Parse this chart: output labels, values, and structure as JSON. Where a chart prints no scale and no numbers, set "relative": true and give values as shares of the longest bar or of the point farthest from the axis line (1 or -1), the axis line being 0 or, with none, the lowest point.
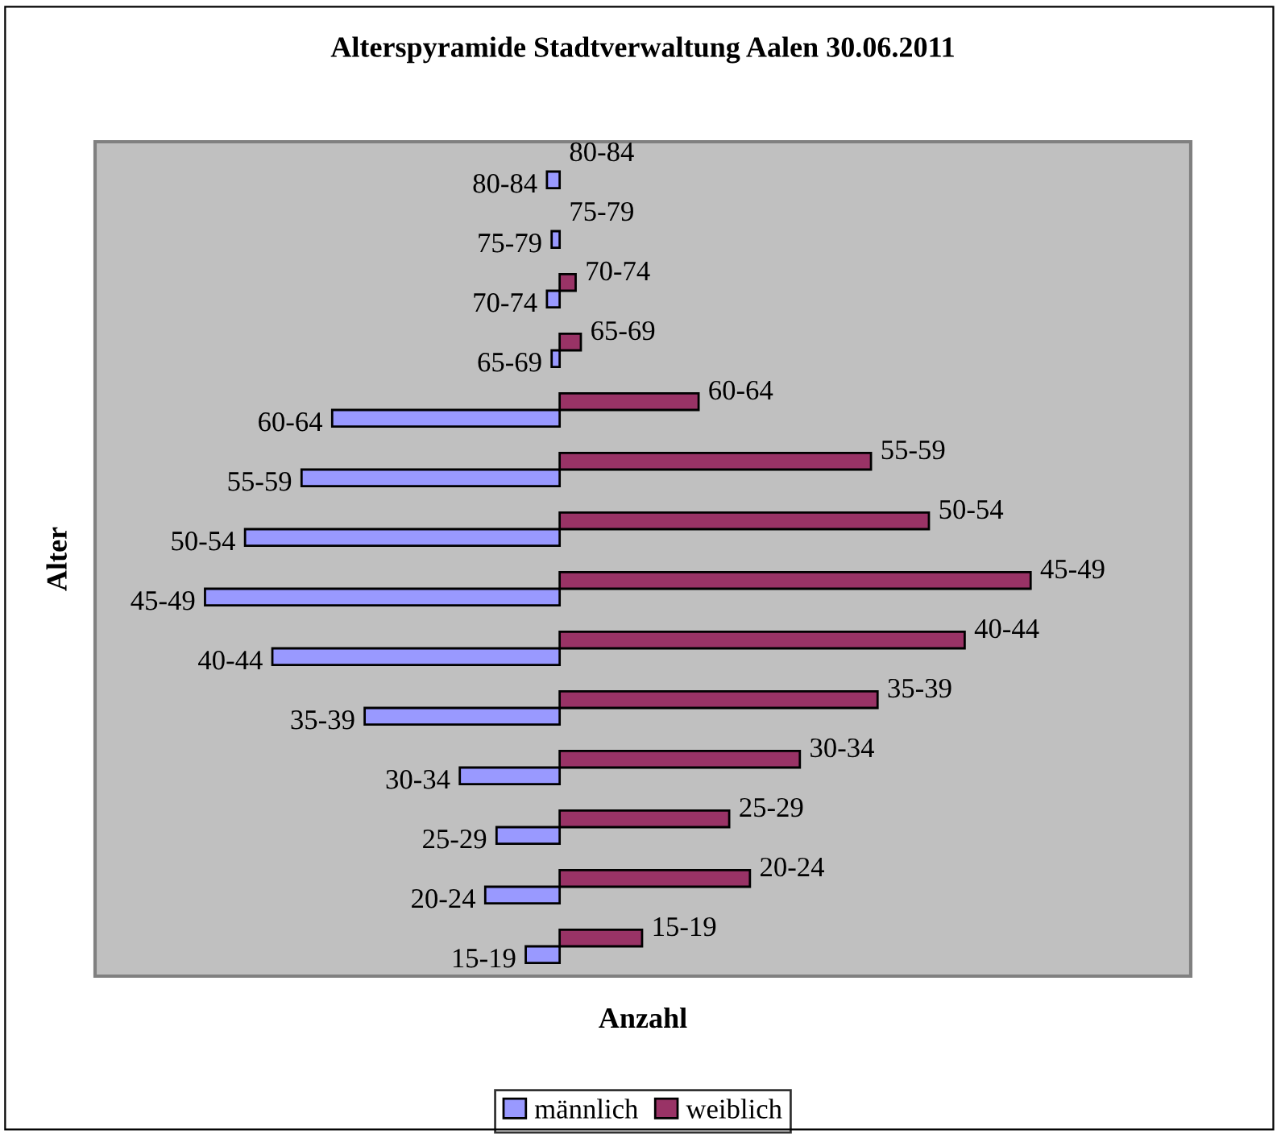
{
  "chart_data": {
    "type": "bar",
    "orientation": "horizontal",
    "relative": true,
    "title": "Alterspyramide Stadtverwaltung Aalen 30.06.2011",
    "xlabel": "Anzahl",
    "ylabel": "Alter",
    "categories": [
      "80-84",
      "75-79",
      "70-74",
      "65-69",
      "60-64",
      "55-59",
      "50-54",
      "45-49",
      "40-44",
      "35-39",
      "30-34",
      "25-29",
      "20-24",
      "15-19"
    ],
    "series": [
      {
        "name": "männlich",
        "color": "#9999ff",
        "values": [
          -0.027,
          -0.017,
          -0.027,
          -0.017,
          -0.483,
          -0.548,
          -0.668,
          -0.753,
          -0.61,
          -0.414,
          -0.212,
          -0.134,
          -0.158,
          -0.072
        ]
      },
      {
        "name": "weiblich",
        "color": "#993366",
        "values": [
          null,
          null,
          0.034,
          0.045,
          0.295,
          0.661,
          0.784,
          1,
          0.86,
          0.675,
          0.51,
          0.36,
          0.404,
          0.175
        ]
      }
    ],
    "legend": "bottom"
  }
}
